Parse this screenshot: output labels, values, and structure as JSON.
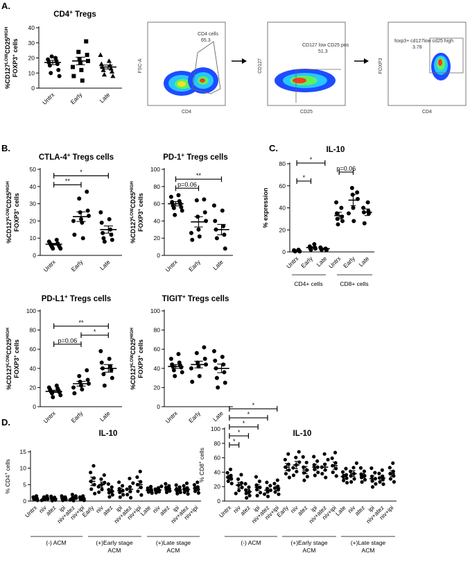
{
  "panel_labels": [
    "A.",
    "B.",
    "C.",
    "D."
  ],
  "flow": {
    "plot1": {
      "xlabel": "CD4",
      "ylabel": "FSC-A",
      "gate_name": "CD4 cells",
      "gate_value": "65.3"
    },
    "plot2": {
      "xlabel": "CD25",
      "ylabel": "CD127",
      "gate_name": "CD127 low CD25 pos",
      "gate_value": "51.3"
    },
    "plot3": {
      "xlabel": "CD4",
      "ylabel": "FOXP3",
      "gate_name": "foxp3+ cd127low cd25 high",
      "gate_value": "3.78"
    }
  },
  "ylabels": {
    "treg_main": "%CD127LOWCD25HIGH",
    "treg_sub": "FOXP3+ cells",
    "expr": "% expression",
    "cd4": "% CD4+ cells",
    "cd8": "% CD8+ cells"
  },
  "group_labels": {
    "cd4": "CD4+ cells",
    "cd8": "CD8+ cells",
    "acm_neg": "(-) ACM",
    "acm_early_1": "(+)Early stage",
    "acm_early_2": "ACM",
    "acm_late_1": "(+)Late stage",
    "acm_late_2": "ACM"
  },
  "chart_data": [
    {
      "id": "A_cd4_tregs",
      "type": "scatter",
      "title": "CD4+ Tregs",
      "ylabel": "%CD127LOWCD25HIGH FOXP3+ cells",
      "ylim": [
        0,
        40
      ],
      "yticks": [
        0,
        10,
        20,
        30,
        40
      ],
      "categories": [
        "Untrx",
        "Early",
        "Late"
      ],
      "values": [
        [
          20,
          19,
          18,
          17,
          16,
          15,
          12,
          10,
          8,
          21
        ],
        [
          31,
          24,
          22,
          19,
          18,
          17,
          14,
          12,
          8,
          5
        ],
        [
          22,
          18,
          16,
          15,
          14,
          13,
          12,
          11,
          9,
          8
        ]
      ],
      "means": [
        17,
        18,
        14
      ],
      "sems": [
        1.4,
        2.5,
        1.3
      ],
      "comparisons": []
    },
    {
      "id": "B_ctla4",
      "type": "scatter",
      "title": "CTLA-4+ Tregs cells",
      "ylabel": "%CD127LOWCD25HIGH FOXP3+ cells",
      "ylim": [
        0,
        50
      ],
      "yticks": [
        0,
        10,
        20,
        30,
        40,
        50
      ],
      "categories": [
        "Untrx",
        "Early",
        "Late"
      ],
      "values": [
        [
          9,
          8,
          7,
          7,
          6,
          6,
          5,
          5,
          4,
          4
        ],
        [
          37,
          33,
          26,
          25,
          23,
          21,
          20,
          19,
          12,
          10
        ],
        [
          25,
          21,
          19,
          15,
          13,
          12,
          10,
          9,
          8
        ]
      ],
      "means": [
        6.5,
        22.5,
        15
      ],
      "sems": [
        0.5,
        2.8,
        2.1
      ],
      "comparisons": [
        {
          "from": "Untrx",
          "to": "Early",
          "label": "**"
        },
        {
          "from": "Untrx",
          "to": "Late",
          "label": "*"
        }
      ]
    },
    {
      "id": "B_pd1",
      "type": "scatter",
      "title": "PD-1+ Tregs cells",
      "ylabel": "%CD127LOWCD25HIGH FOXP3+ cells",
      "ylim": [
        0,
        100
      ],
      "yticks": [
        0,
        20,
        40,
        60,
        80,
        100
      ],
      "categories": [
        "Untrx",
        "Early",
        "Late"
      ],
      "values": [
        [
          70,
          68,
          63,
          62,
          60,
          58,
          56,
          55,
          52,
          47
        ],
        [
          65,
          64,
          50,
          45,
          40,
          30,
          26,
          22,
          18
        ],
        [
          58,
          52,
          40,
          34,
          30,
          24,
          20,
          8
        ]
      ],
      "means": [
        60,
        39,
        30
      ],
      "sems": [
        2.5,
        6,
        6
      ],
      "comparisons": [
        {
          "from": "Untrx",
          "to": "Early",
          "label": "p=0.06"
        },
        {
          "from": "Untrx",
          "to": "Late",
          "label": "**"
        }
      ]
    },
    {
      "id": "B_pdl1",
      "type": "scatter",
      "title": "PD-L1+ Tregs cells",
      "ylabel": "%CD127LOWCD25HIGH FOXP3+ cells",
      "ylim": [
        0,
        100
      ],
      "yticks": [
        0,
        20,
        40,
        60,
        80,
        100
      ],
      "categories": [
        "Untrx",
        "Early",
        "Late"
      ],
      "values": [
        [
          22,
          20,
          19,
          18,
          17,
          16,
          15,
          14,
          12,
          10
        ],
        [
          38,
          32,
          28,
          26,
          24,
          22,
          20,
          18,
          14
        ],
        [
          58,
          50,
          46,
          42,
          40,
          38,
          34,
          30,
          22
        ]
      ],
      "means": [
        16,
        24,
        40
      ],
      "sems": [
        1.2,
        2.5,
        4
      ],
      "comparisons": [
        {
          "from": "Untrx",
          "to": "Early",
          "label": "p=0.06"
        },
        {
          "from": "Untrx",
          "to": "Late",
          "label": "**"
        },
        {
          "from": "Early",
          "to": "Late",
          "label": "*"
        }
      ]
    },
    {
      "id": "B_tigit",
      "type": "scatter",
      "title": "TIGIT+ Tregs cells",
      "ylabel": "%CD127LOWCD25HIGH FOXP3+ cells",
      "ylim": [
        0,
        100
      ],
      "yticks": [
        0,
        20,
        40,
        60,
        80,
        100
      ],
      "categories": [
        "Untrx",
        "Early",
        "Late"
      ],
      "values": [
        [
          55,
          50,
          46,
          44,
          43,
          42,
          41,
          38,
          36,
          32
        ],
        [
          62,
          56,
          50,
          46,
          44,
          42,
          40,
          32,
          26
        ],
        [
          58,
          52,
          48,
          44,
          40,
          36,
          30,
          25,
          20
        ]
      ],
      "means": [
        42,
        44,
        40
      ],
      "sems": [
        2,
        3.5,
        4.5
      ],
      "comparisons": []
    },
    {
      "id": "C_il10",
      "type": "scatter",
      "title": "IL-10",
      "ylabel": "% expression",
      "ylim": [
        0,
        80
      ],
      "yticks": [
        0,
        20,
        40,
        60,
        80
      ],
      "categories": [
        "Untrx",
        "Early",
        "Late",
        "Untrx",
        "Early",
        "Late"
      ],
      "values": [
        [
          2,
          1.5,
          1,
          1,
          0.5,
          0.5
        ],
        [
          7,
          5,
          4,
          3,
          3,
          2
        ],
        [
          4,
          3,
          3,
          2,
          2,
          2
        ],
        [
          45,
          40,
          35,
          32,
          30,
          28,
          25
        ],
        [
          58,
          54,
          52,
          48,
          40,
          35,
          28
        ],
        [
          45,
          40,
          37,
          36,
          35,
          26
        ]
      ],
      "means": [
        1,
        4,
        3,
        33,
        47,
        36
      ],
      "sems": [
        0.3,
        0.7,
        0.4,
        3,
        5,
        3
      ],
      "comparisons": [
        {
          "from": 0,
          "to": 1,
          "label": "*"
        },
        {
          "from": 0,
          "to": 2,
          "label": "*"
        },
        {
          "from": 3,
          "to": 4,
          "label": "p=0.06"
        }
      ]
    },
    {
      "id": "D_il10_cd4",
      "type": "scatter",
      "title": "IL-10",
      "ylabel": "% CD4+ cells",
      "ylim": [
        0,
        15
      ],
      "yticks": [
        0,
        5,
        10,
        15
      ],
      "categories": [
        "Untrx",
        "niv",
        "atez",
        "ipi",
        "niv+atez",
        "niv+ipi",
        "Early",
        "niv",
        "atez",
        "ipi",
        "niv+atez",
        "niv+ipi",
        "Late",
        "niv",
        "atez",
        "ipi",
        "niv+atez",
        "niv+ipi"
      ],
      "means": [
        0.8,
        0.8,
        0.7,
        0.8,
        0.9,
        0.8,
        6,
        5,
        3,
        3.2,
        3.6,
        5,
        3.3,
        3.4,
        3.8,
        3.4,
        3.6,
        3.9
      ],
      "sems": [
        0.2,
        0.2,
        0.2,
        0.2,
        0.3,
        0.2,
        1.3,
        0.8,
        0.6,
        0.7,
        0.9,
        1.1,
        0.3,
        0.3,
        0.4,
        0.4,
        0.5,
        0.5
      ],
      "comparisons": []
    },
    {
      "id": "D_il10_cd8",
      "type": "scatter",
      "title": "IL-10",
      "ylabel": "% CD8+ cells",
      "ylim": [
        0,
        100
      ],
      "yticks": [
        0,
        20,
        40,
        60,
        80,
        100
      ],
      "categories": [
        "Untrx",
        "niv",
        "atez",
        "ipi",
        "niv+atez",
        "niv+ipi",
        "Early",
        "niv",
        "atez",
        "ipi",
        "niv+atez",
        "niv+ipi",
        "Late",
        "niv",
        "atez",
        "ipi",
        "niv+atez",
        "niv+ipi"
      ],
      "means": [
        33,
        22,
        13,
        19,
        15,
        18,
        47,
        50,
        43,
        47,
        47,
        49,
        34,
        38,
        35,
        31,
        32,
        38
      ],
      "sems": [
        3,
        4,
        3,
        4,
        3,
        3,
        5,
        5,
        5,
        4,
        5,
        5,
        3,
        4,
        3,
        4,
        3,
        4
      ],
      "comparisons": [
        {
          "from": 0,
          "to": 1,
          "label": "*"
        },
        {
          "from": 0,
          "to": 2,
          "label": "*"
        },
        {
          "from": 0,
          "to": 3,
          "label": "*"
        },
        {
          "from": 0,
          "to": 4,
          "label": "*"
        },
        {
          "from": 0,
          "to": 5,
          "label": "*"
        }
      ]
    }
  ]
}
